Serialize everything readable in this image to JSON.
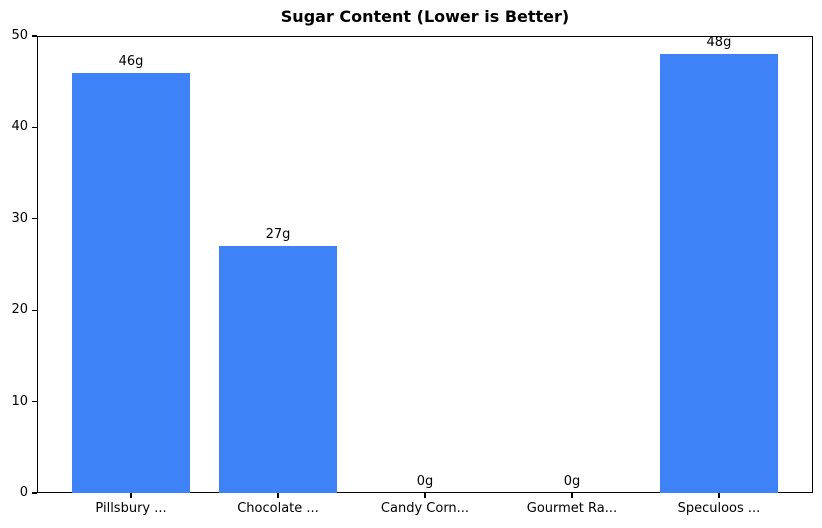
{
  "chart_data": {
    "type": "bar",
    "title": "Sugar Content (Lower is Better)",
    "categories": [
      "Pillsbury ...",
      "Chocolate ...",
      "Candy Corn...",
      "Gourmet Ra...",
      "Speculoos ..."
    ],
    "values": [
      46,
      27,
      0,
      0,
      48
    ],
    "bar_labels": [
      "46g",
      "27g",
      "0g",
      "0g",
      "48g"
    ],
    "yticks": [
      0,
      10,
      20,
      30,
      40,
      50
    ],
    "ylim": [
      0,
      50
    ],
    "xlabel": "",
    "ylabel": "",
    "bar_color": "#3d82f6",
    "text_color": "#000000",
    "grid": false,
    "legend": null
  }
}
